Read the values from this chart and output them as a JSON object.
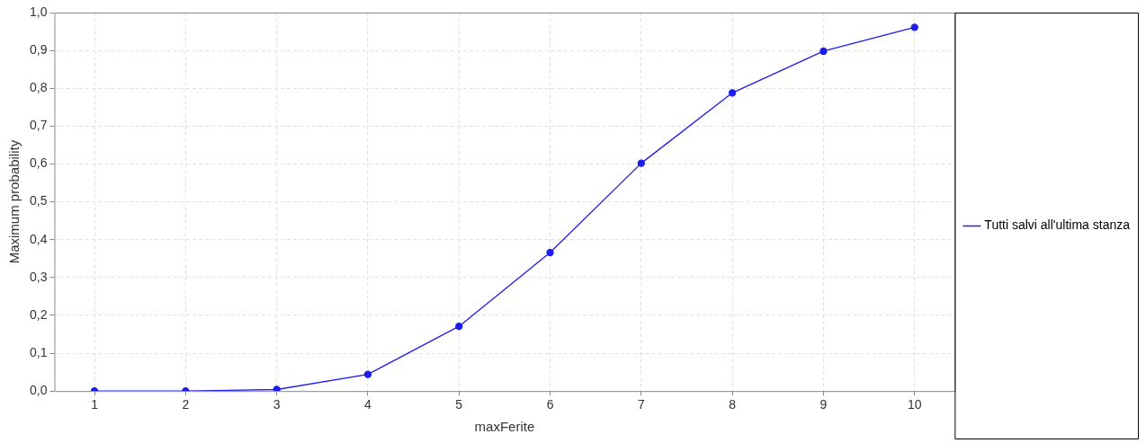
{
  "chart_data": {
    "type": "line",
    "xlabel": "maxFerite",
    "ylabel": "Maximum probability",
    "x": [
      1,
      2,
      3,
      4,
      5,
      6,
      7,
      8,
      9,
      10
    ],
    "series": [
      {
        "name": "Tutti salvi all'ultima stanza",
        "color": "#1c1cf0",
        "values": [
          0,
          0,
          0.004,
          0.044,
          0.171,
          0.366,
          0.602,
          0.788,
          0.898,
          0.961
        ]
      }
    ],
    "xlim": [
      0.56,
      10.44
    ],
    "xticks": [
      1,
      2,
      3,
      4,
      5,
      6,
      7,
      8,
      9,
      10
    ],
    "ylim": [
      0,
      1
    ],
    "yticks": [
      {
        "value": 0,
        "label": "0,0"
      },
      {
        "value": 0.1,
        "label": "0,1"
      },
      {
        "value": 0.2,
        "label": "0,2"
      },
      {
        "value": 0.3,
        "label": "0,3"
      },
      {
        "value": 0.4,
        "label": "0,4"
      },
      {
        "value": 0.5,
        "label": "0,5"
      },
      {
        "value": 0.6,
        "label": "0,6"
      },
      {
        "value": 0.7,
        "label": "0,7"
      },
      {
        "value": 0.8,
        "label": "0,8"
      },
      {
        "value": 0.9,
        "label": "0,9"
      },
      {
        "value": 1,
        "label": "1,0"
      }
    ],
    "grid": true,
    "legend": "right",
    "marker": "circle",
    "line_style": "solid"
  }
}
